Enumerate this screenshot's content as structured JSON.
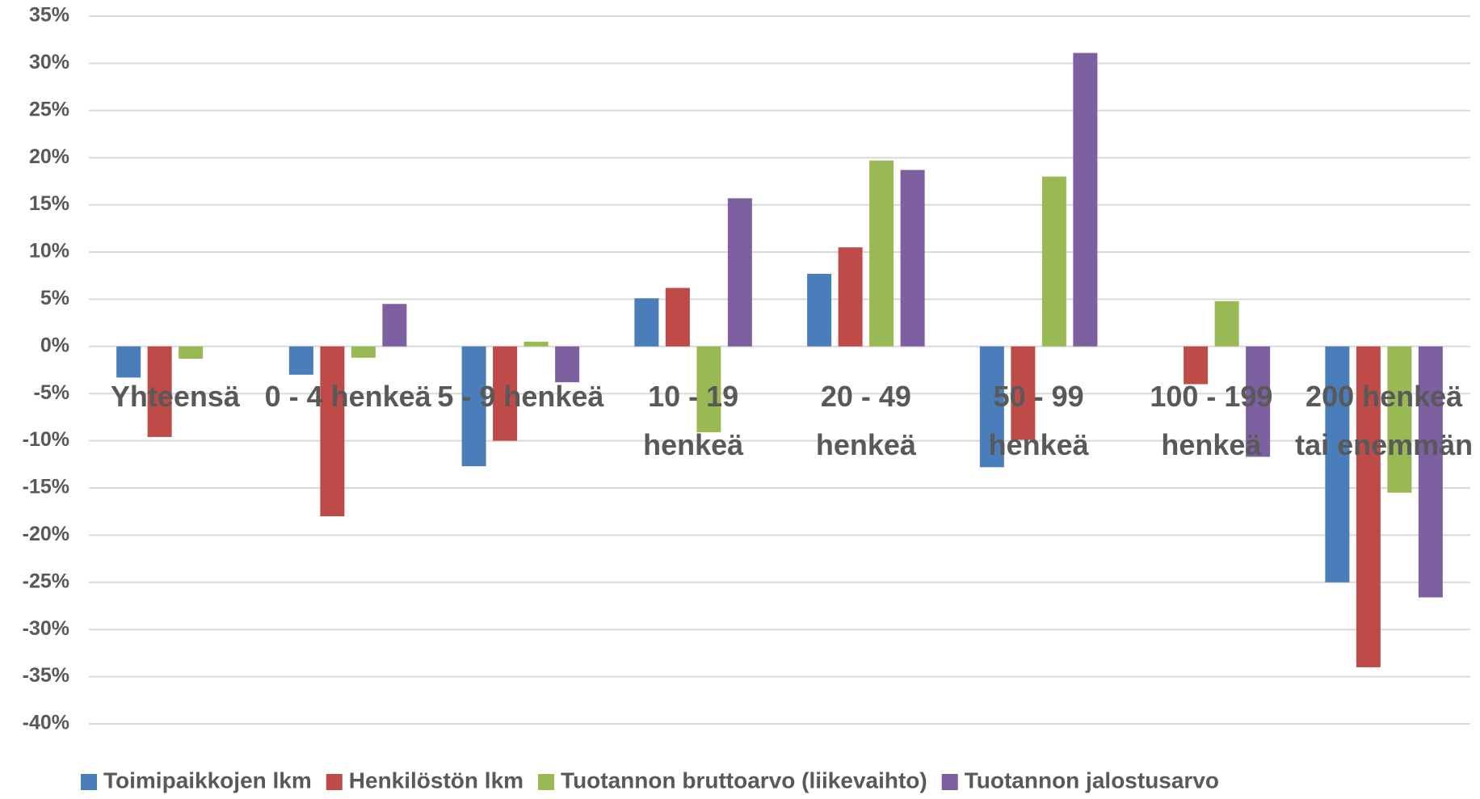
{
  "chart_data": {
    "type": "bar",
    "categories": [
      "Yhteensä",
      "0 - 4 henkeä",
      "5 - 9 henkeä",
      "10 - 19 henkeä",
      "20 - 49 henkeä",
      "50 - 99 henkeä",
      "100 - 199 henkeä",
      "200 henkeä tai enemmän"
    ],
    "series": [
      {
        "name": "Toimipaikkojen lkm",
        "color": "#4a7ebb",
        "values": [
          -3.3,
          -3,
          -12.7,
          5.1,
          7.7,
          -12.8,
          null,
          -25
        ]
      },
      {
        "name": "Henkilöstön lkm",
        "color": "#be4b48",
        "values": [
          -9.6,
          -18,
          -10,
          6.2,
          10.5,
          -9.9,
          -4,
          -34
        ]
      },
      {
        "name": "Tuotannon bruttoarvo (liikevaihto)",
        "color": "#98b954",
        "values": [
          -1.3,
          -1.2,
          0.5,
          -9.1,
          19.7,
          18,
          4.8,
          -15.5
        ]
      },
      {
        "name": "Tuotannon jalostusarvo",
        "color": "#7d60a0",
        "values": [
          null,
          4.5,
          -3.8,
          15.7,
          18.7,
          31.1,
          -11.7,
          -26.6
        ]
      }
    ],
    "ylim": [
      -40,
      35
    ],
    "yticks": [
      {
        "value": -40,
        "label": "-40%"
      },
      {
        "value": -35,
        "label": "-35%"
      },
      {
        "value": -30,
        "label": "-30%"
      },
      {
        "value": -25,
        "label": "-25%"
      },
      {
        "value": -20,
        "label": "-20%"
      },
      {
        "value": -15,
        "label": "-15%"
      },
      {
        "value": -10,
        "label": "-10%"
      },
      {
        "value": -5,
        "label": "-5%"
      },
      {
        "value": 0,
        "label": "0%"
      },
      {
        "value": 5,
        "label": "5%"
      },
      {
        "value": 10,
        "label": "10%"
      },
      {
        "value": 15,
        "label": "15%"
      },
      {
        "value": 20,
        "label": "20%"
      },
      {
        "value": 25,
        "label": "25%"
      },
      {
        "value": 30,
        "label": "30%"
      },
      {
        "value": 35,
        "label": "35%"
      }
    ],
    "grid": true,
    "legend": "bottom"
  }
}
